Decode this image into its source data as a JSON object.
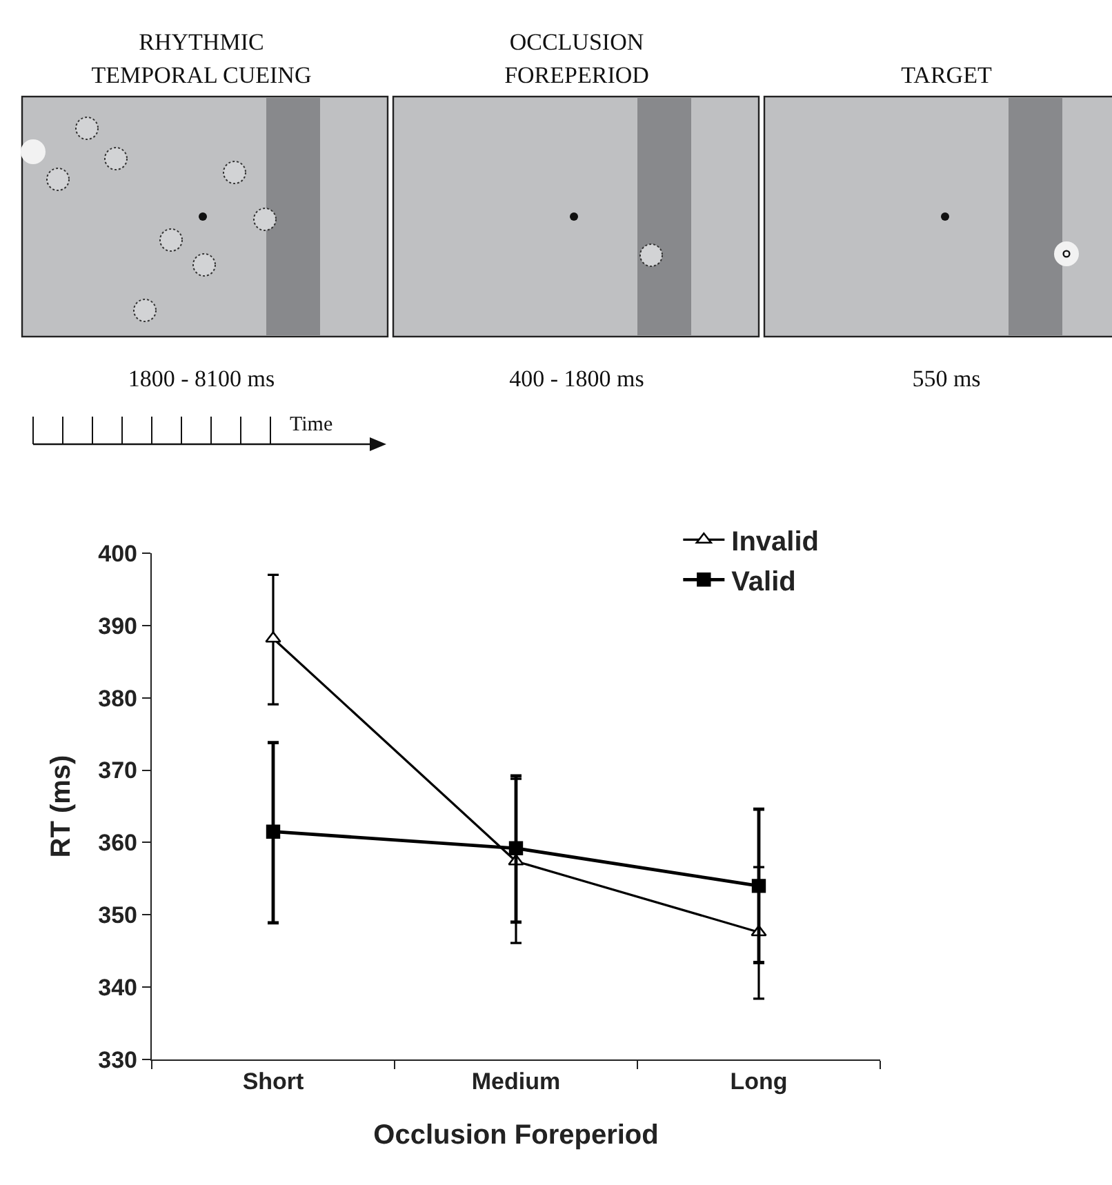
{
  "chart_data": {
    "type": "line",
    "xlabel": "Occlusion Foreperiod",
    "ylabel": "RT (ms)",
    "categories": [
      "Short",
      "Medium",
      "Long"
    ],
    "series": [
      {
        "name": "Invalid",
        "color": "#000000",
        "marker": "triangle",
        "values": [
          388.2,
          357.4,
          347.6
        ],
        "errors": [
          [
            379.1,
            397.0
          ],
          [
            346.1,
            368.8
          ],
          [
            338.4,
            356.6
          ]
        ]
      },
      {
        "name": "Valid",
        "color": "#000000",
        "marker": "square",
        "values": [
          361.5,
          359.2,
          354.0
        ],
        "errors": [
          [
            348.9,
            373.8
          ],
          [
            349.0,
            369.2
          ],
          [
            343.4,
            364.6
          ]
        ]
      }
    ],
    "ylim": [
      330,
      400
    ],
    "yticks": [
      330,
      340,
      350,
      360,
      370,
      380,
      390,
      400
    ],
    "grid": false,
    "legend": "top right",
    "line_style": "solid",
    "annotations": [
      "RHYTHMIC\nTEMPORAL CUEING",
      "OCCLUSION\nFOREPERIOD",
      "TARGET",
      "1800 - 8100 ms",
      "400 - 1800 ms",
      "550 ms",
      "Time"
    ]
  }
}
